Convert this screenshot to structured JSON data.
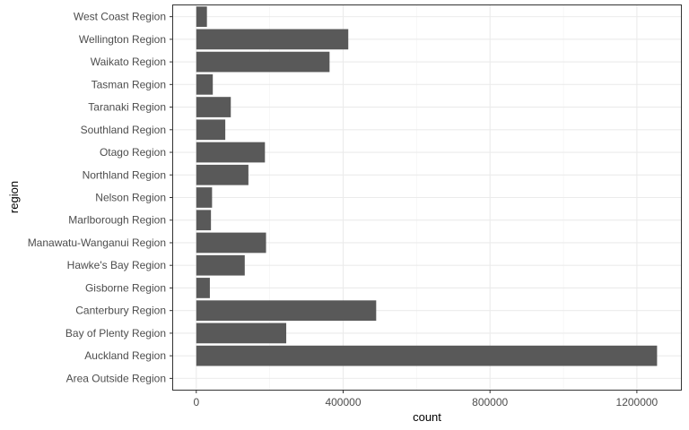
{
  "chart_data": {
    "type": "bar",
    "orientation": "horizontal",
    "xlabel": "count",
    "ylabel": "region",
    "xlim": [
      -63000,
      1320000
    ],
    "x_ticks": [
      0,
      400000,
      800000,
      1200000
    ],
    "x_tick_labels": [
      "0",
      "400000",
      "800000",
      "1200000"
    ],
    "grid": true,
    "bar_color": "#595959",
    "categories": [
      "Area Outside Region",
      "Auckland Region",
      "Bay of Plenty Region",
      "Canterbury Region",
      "Gisborne Region",
      "Hawke's Bay Region",
      "Manawatu-Wanganui Region",
      "Marlborough Region",
      "Nelson Region",
      "Northland Region",
      "Otago Region",
      "Southland Region",
      "Taranaki Region",
      "Tasman Region",
      "Waikato Region",
      "Wellington Region",
      "West Coast Region"
    ],
    "values": [
      0,
      1255000,
      245000,
      490000,
      37000,
      132000,
      190000,
      40000,
      43000,
      142000,
      187000,
      79000,
      94000,
      45000,
      363000,
      414000,
      29000
    ]
  }
}
